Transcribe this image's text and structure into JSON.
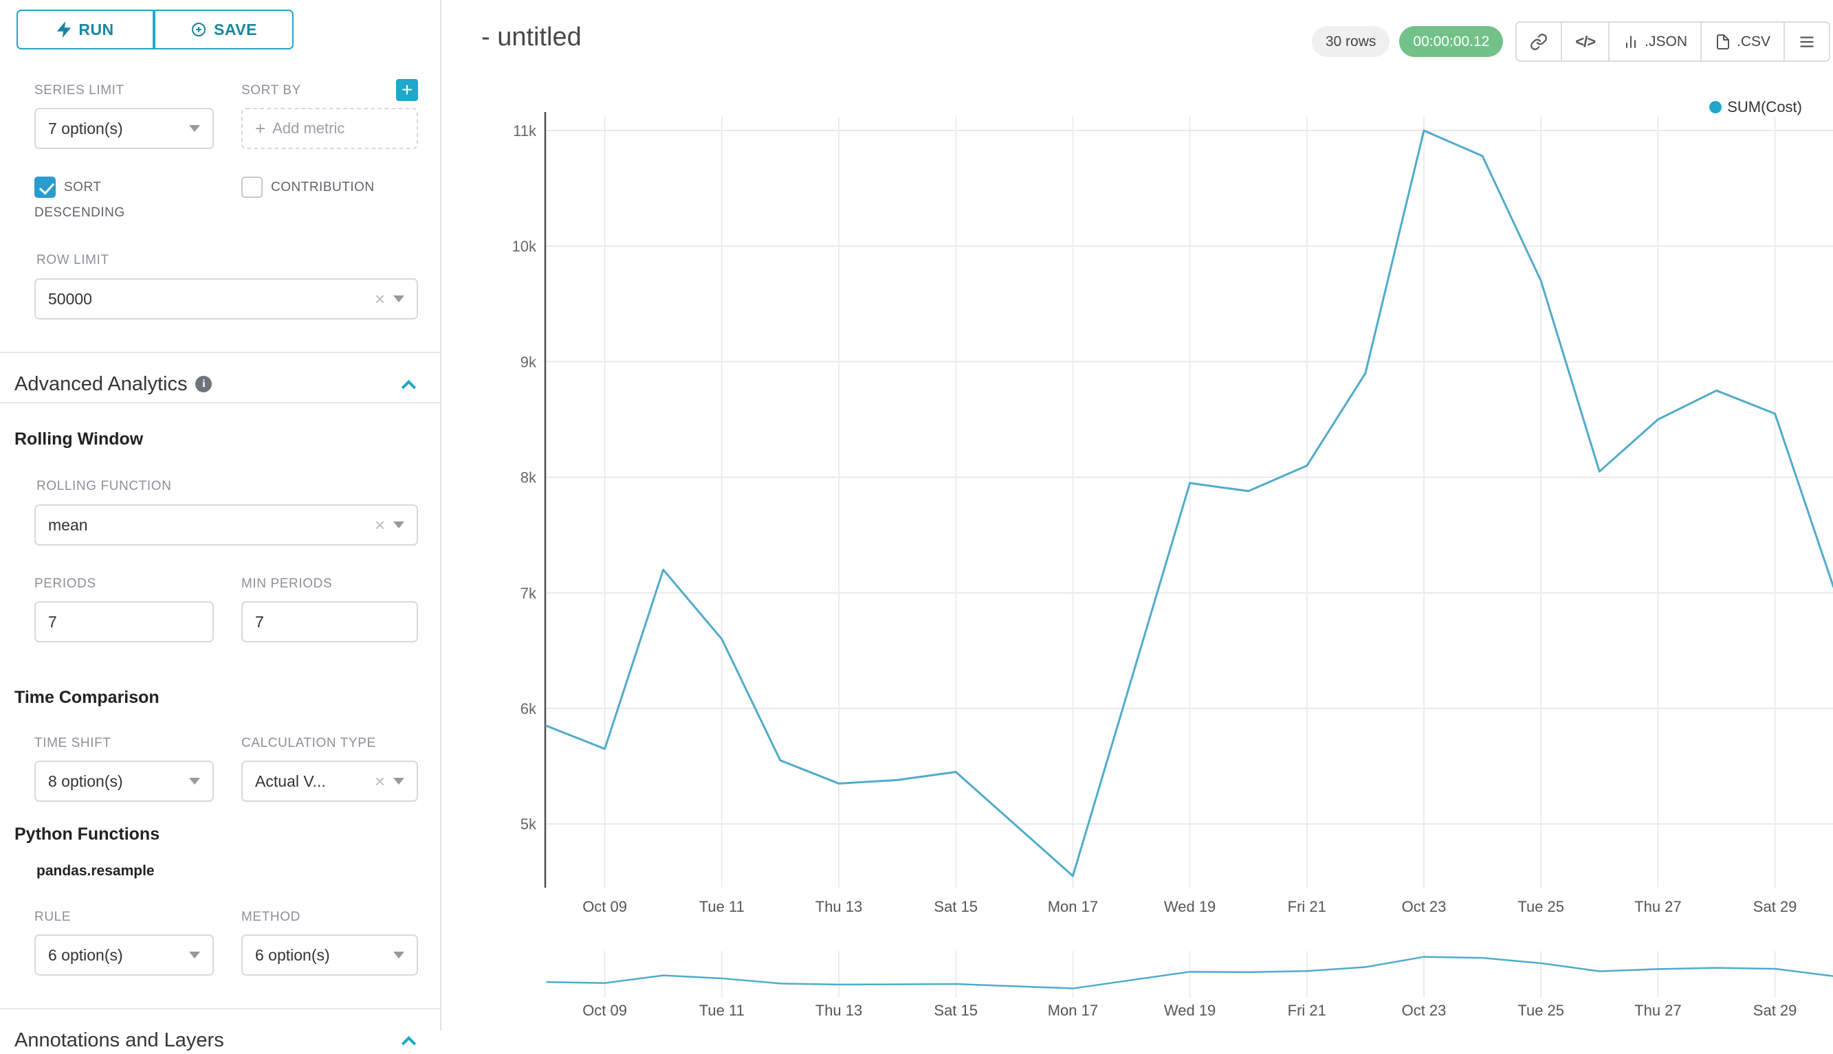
{
  "accent_color": "#20a7c9",
  "sidebar": {
    "run_label": "RUN",
    "save_label": "SAVE",
    "series_limit": {
      "label": "SERIES LIMIT",
      "value": "7 option(s)"
    },
    "sort_by": {
      "label": "SORT BY",
      "placeholder": "Add metric"
    },
    "sort_descending": {
      "label": "SORT DESCENDING",
      "checked": true
    },
    "contribution": {
      "label": "CONTRIBUTION",
      "checked": false
    },
    "row_limit": {
      "label": "ROW LIMIT",
      "value": "50000"
    },
    "advanced_analytics_title": "Advanced Analytics",
    "rolling_window": {
      "title": "Rolling Window",
      "rolling_function": {
        "label": "ROLLING FUNCTION",
        "value": "mean"
      },
      "periods": {
        "label": "PERIODS",
        "value": "7"
      },
      "min_periods": {
        "label": "MIN PERIODS",
        "value": "7"
      }
    },
    "time_comparison": {
      "title": "Time Comparison",
      "time_shift": {
        "label": "TIME SHIFT",
        "value": "8 option(s)"
      },
      "calculation_type": {
        "label": "CALCULATION TYPE",
        "value": "Actual V..."
      }
    },
    "python_functions": {
      "title": "Python Functions",
      "subtitle": "pandas.resample",
      "rule": {
        "label": "RULE",
        "value": "6 option(s)"
      },
      "method": {
        "label": "METHOD",
        "value": "6 option(s)"
      }
    },
    "annotations_title": "Annotations and Layers"
  },
  "header": {
    "title": "- untitled",
    "rows_badge": "30 rows",
    "timer_badge": "00:00:00.12",
    "json_label": ".JSON",
    "csv_label": ".CSV"
  },
  "chart_data": {
    "type": "line",
    "title": "",
    "legend": [
      "SUM(Cost)"
    ],
    "legend_position": "top-right",
    "grid": true,
    "ylim": [
      4400,
      11100
    ],
    "y_ticks": [
      "11k",
      "10k",
      "9k",
      "8k",
      "7k",
      "6k",
      "5k"
    ],
    "y_tick_values": [
      11000,
      10000,
      9000,
      8000,
      7000,
      6000,
      5000
    ],
    "x_ticks": [
      "Oct 09",
      "Tue 11",
      "Thu 13",
      "Sat 15",
      "Mon 17",
      "Wed 19",
      "Fri 21",
      "Oct 23",
      "Tue 25",
      "Thu 27",
      "Sat 29"
    ],
    "series": [
      {
        "name": "SUM(Cost)",
        "color": "#1fa8c9",
        "line_color": "#4fabcb",
        "x": [
          "Oct 08",
          "Oct 09",
          "Oct 10",
          "Oct 11",
          "Oct 12",
          "Oct 13",
          "Oct 14",
          "Oct 15",
          "Oct 16",
          "Oct 17",
          "Oct 18",
          "Oct 19",
          "Oct 20",
          "Oct 21",
          "Oct 22",
          "Oct 23",
          "Oct 24",
          "Oct 25",
          "Oct 26",
          "Oct 27",
          "Oct 28",
          "Oct 29",
          "Oct 30"
        ],
        "values": [
          5850,
          5650,
          7200,
          6600,
          5550,
          5350,
          5380,
          5450,
          5000,
          4550,
          6250,
          7950,
          7880,
          8100,
          8900,
          11000,
          10780,
          9700,
          8050,
          8500,
          8750,
          8550,
          7050
        ]
      }
    ],
    "mini_chart": true
  }
}
